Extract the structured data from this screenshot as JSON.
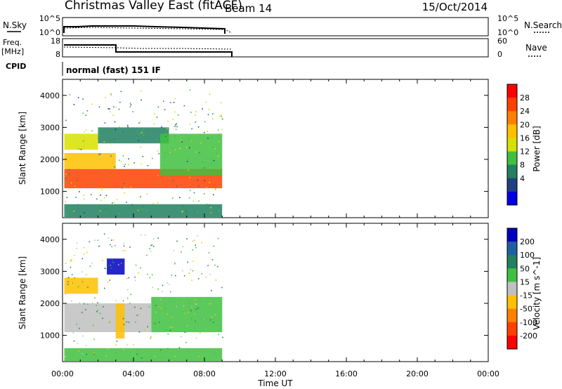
{
  "header": {
    "title": "Christmas Valley East (fitACF)",
    "beam": "Beam 14",
    "date": "15/Oct/2014"
  },
  "strip_nsky": {
    "left_label": "N.Sky",
    "right_label": "N.Search",
    "left_ticks": [
      "10^5",
      "10^0"
    ],
    "right_ticks": [
      "10^5",
      "10^0"
    ]
  },
  "strip_freq": {
    "left_label_1": "Freq.",
    "left_label_2": "[MHz]",
    "right_label": "Nave",
    "left_ticks": [
      "18",
      "8"
    ],
    "right_ticks": [
      "60",
      "0"
    ]
  },
  "strip_cpid": {
    "label": "CPID",
    "text": "normal (fast) 151 IF"
  },
  "x_axis": {
    "label": "Time UT",
    "ticks": [
      "00:00",
      "04:00",
      "08:00",
      "12:00",
      "16:00",
      "20:00",
      "00:00"
    ]
  },
  "power_panel": {
    "ylabel": "Slant Range [km]",
    "yticks": [
      "1000",
      "2000",
      "3000",
      "4000"
    ],
    "colorbar_label": "Power [dB]",
    "colorbar_ticks": [
      "28",
      "24",
      "20",
      "16",
      "12",
      "8",
      "4"
    ],
    "colorbar_colors": [
      "#ff0000",
      "#ff4000",
      "#ff8000",
      "#ffc000",
      "#d8e000",
      "#40c040",
      "#208060",
      "#204080",
      "#0000e0"
    ]
  },
  "velocity_panel": {
    "ylabel": "Slant Range [km]",
    "yticks": [
      "1000",
      "2000",
      "3000",
      "4000"
    ],
    "colorbar_label": "Velocity [m s^-1]",
    "colorbar_ticks": [
      "200",
      "100",
      "50",
      "15",
      "-15",
      "-50",
      "-100",
      "-200"
    ],
    "colorbar_colors": [
      "#0000c0",
      "#2060a0",
      "#208060",
      "#40c040",
      "#c0c0c0",
      "#ffc000",
      "#ff8000",
      "#ff4000",
      "#ff0000"
    ]
  },
  "chart_data": {
    "type": "heatmap",
    "x_range_hours": [
      0,
      24
    ],
    "y_range_km": [
      180,
      4500
    ],
    "data_end_hour": 9.0,
    "nsky_level_log": 1.8,
    "freq_mhz": [
      {
        "from": 0,
        "to": 3,
        "value": 15
      },
      {
        "from": 3,
        "to": 9.5,
        "value": 11
      }
    ],
    "power_regions": [
      {
        "t0": 0.1,
        "t1": 9.0,
        "r0": 1100,
        "r1": 1700,
        "value_db": 28
      },
      {
        "t0": 0.1,
        "t1": 3.0,
        "r0": 1700,
        "r1": 2200,
        "value_db": 20
      },
      {
        "t0": 0.1,
        "t1": 2.0,
        "r0": 2300,
        "r1": 2800,
        "value_db": 16
      },
      {
        "t0": 2.0,
        "t1": 6.0,
        "r0": 2500,
        "r1": 3000,
        "value_db": 8
      },
      {
        "t0": 5.5,
        "t1": 9.0,
        "r0": 1500,
        "r1": 2800,
        "value_db": 12
      },
      {
        "t0": 0.1,
        "t1": 9.0,
        "r0": 200,
        "r1": 600,
        "value_db": 6
      }
    ],
    "velocity_regions": [
      {
        "t0": 0.1,
        "t1": 5.0,
        "r0": 1100,
        "r1": 2000,
        "value_ms": 0
      },
      {
        "t0": 0.1,
        "t1": 2.0,
        "r0": 2300,
        "r1": 2800,
        "value_ms": -30
      },
      {
        "t0": 3.0,
        "t1": 3.5,
        "r0": 900,
        "r1": 2000,
        "value_ms": -40
      },
      {
        "t0": 5.0,
        "t1": 9.0,
        "r0": 1100,
        "r1": 2200,
        "value_ms": 40
      },
      {
        "t0": 2.5,
        "t1": 3.5,
        "r0": 2900,
        "r1": 3400,
        "value_ms": 250
      },
      {
        "t0": 0.1,
        "t1": 9.0,
        "r0": 200,
        "r1": 600,
        "value_ms": 30
      }
    ]
  }
}
